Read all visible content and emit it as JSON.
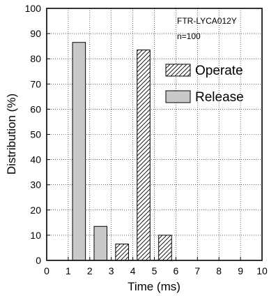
{
  "chart_data": {
    "type": "bar",
    "title": "",
    "xlabel": "Time (ms)",
    "ylabel": "Distribution (%)",
    "xlim": [
      0,
      10
    ],
    "ylim": [
      0,
      100
    ],
    "x_ticks": [
      "0",
      "1",
      "2",
      "3",
      "4",
      "5",
      "6",
      "7",
      "8",
      "9",
      "10"
    ],
    "y_ticks": [
      "0",
      "10",
      "20",
      "30",
      "40",
      "50",
      "60",
      "70",
      "80",
      "90",
      "100"
    ],
    "grid": true,
    "legend_position": "upper-right",
    "annotations": [
      "FTR-LYCA012Y",
      "n=100"
    ],
    "bar_width": 0.6,
    "series": [
      {
        "name": "Operate",
        "pattern": "hatched",
        "x": [
          3.5,
          4.5,
          5.5
        ],
        "values": [
          6.5,
          83.5,
          10
        ]
      },
      {
        "name": "Release",
        "fill": "#c8c8c8",
        "x": [
          1.5,
          2.5
        ],
        "values": [
          86.5,
          13.5
        ]
      }
    ]
  }
}
